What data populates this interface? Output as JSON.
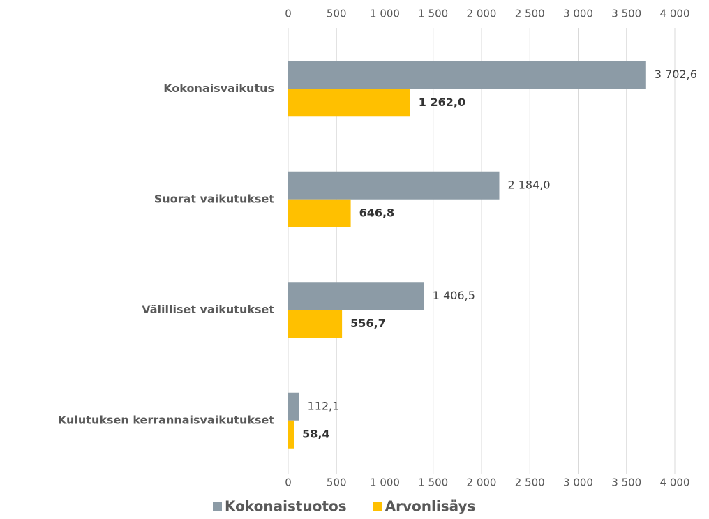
{
  "chart_data": {
    "type": "bar",
    "orientation": "horizontal",
    "categories": [
      "Kokonaisvaikutus",
      "Suorat vaikutukset",
      "Välilliset vaikutukset",
      "Kulutuksen kerrannaisvaikutukset"
    ],
    "series": [
      {
        "name": "Kokonaistuotos",
        "color": "#8c9ba6",
        "values": [
          3702.6,
          2184.0,
          1406.5,
          112.1
        ],
        "value_labels": [
          "3 702,6",
          "2 184,0",
          "1 406,5",
          "112,1"
        ]
      },
      {
        "name": "Arvonlisäys",
        "color": "#ffc000",
        "values": [
          1262.0,
          646.8,
          556.7,
          58.4
        ],
        "value_labels": [
          "1 262,0",
          "646,8",
          "556,7",
          "58,4"
        ]
      }
    ],
    "xlim": [
      0,
      4000
    ],
    "xticks": [
      0,
      500,
      {
        "value": 1000,
        "label": "1 000"
      },
      {
        "value": 1500,
        "label": "1 500"
      },
      {
        "value": 2000,
        "label": "2 000"
      },
      {
        "value": 2500,
        "label": "2 500"
      },
      {
        "value": 3000,
        "label": "3 000"
      },
      {
        "value": 3500,
        "label": "3 500"
      },
      {
        "value": 4000,
        "label": "4 000"
      }
    ],
    "grid": true,
    "legend": "bottom"
  }
}
